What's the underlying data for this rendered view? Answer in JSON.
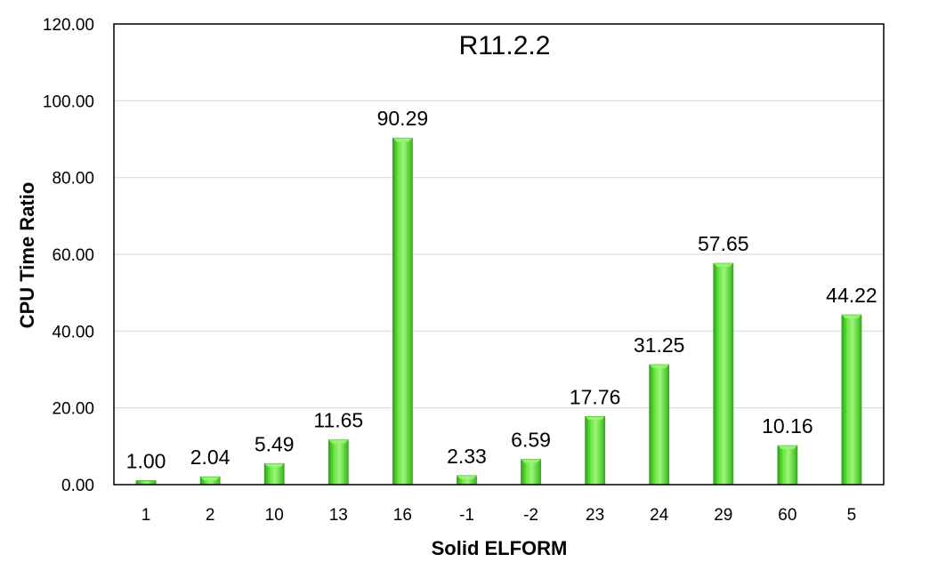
{
  "chart_data": {
    "type": "bar",
    "title": "R11.2.2",
    "xlabel": "Solid ELFORM",
    "ylabel": "CPU Time Ratio",
    "categories": [
      "1",
      "2",
      "10",
      "13",
      "16",
      "-1",
      "-2",
      "23",
      "24",
      "29",
      "60",
      "5"
    ],
    "values": [
      1.0,
      2.04,
      5.49,
      11.65,
      90.29,
      2.33,
      6.59,
      17.76,
      31.25,
      57.65,
      10.16,
      44.22
    ],
    "value_labels": [
      "1.00",
      "2.04",
      "5.49",
      "11.65",
      "90.29",
      "2.33",
      "6.59",
      "17.76",
      "31.25",
      "57.65",
      "10.16",
      "44.22"
    ],
    "ylim": [
      0,
      120
    ],
    "yticks": [
      "0.00",
      "20.00",
      "40.00",
      "60.00",
      "80.00",
      "100.00",
      "120.00"
    ],
    "grid": true,
    "legend": "none",
    "colors": {
      "bar": "#44dd22",
      "bar_light": "#9cf57a",
      "bar_dark": "#2aa80e",
      "grid": "#d9d9d9",
      "axis": "#000000"
    }
  }
}
